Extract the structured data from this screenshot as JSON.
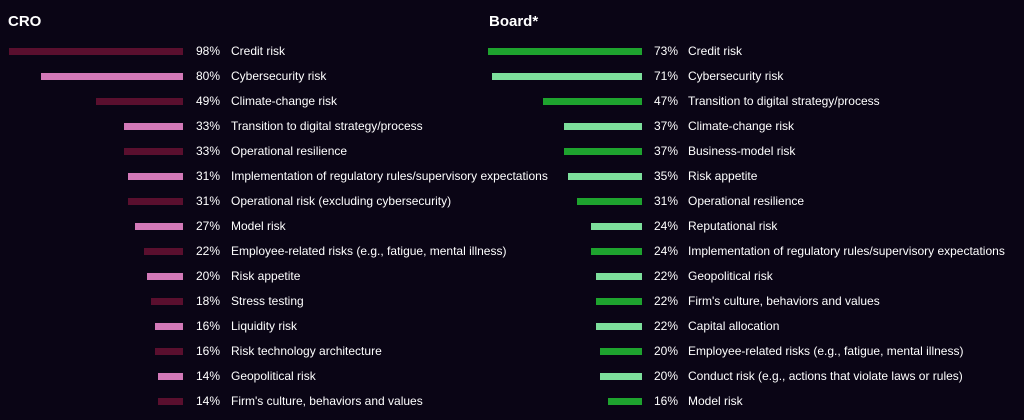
{
  "chart_data": [
    {
      "type": "bar",
      "title": "CRO",
      "orientation": "horizontal",
      "categories": [
        "Credit risk",
        "Cybersecurity risk",
        "Climate-change risk",
        "Transition to digital strategy/process",
        "Operational resilience",
        "Implementation of regulatory rules/supervisory expectations",
        "Operational risk (excluding cybersecurity)",
        "Model risk",
        "Employee-related risks (e.g., fatigue, mental illness)",
        "Risk appetite",
        "Stress testing",
        "Liquidity risk",
        "Risk technology architecture",
        "Geopolitical risk",
        "Firm's culture, behaviors and values"
      ],
      "values": [
        98,
        80,
        49,
        33,
        33,
        31,
        31,
        27,
        22,
        20,
        18,
        16,
        16,
        14,
        14
      ],
      "value_labels": [
        "98%",
        "80%",
        "49%",
        "33%",
        "33%",
        "31%",
        "31%",
        "27%",
        "22%",
        "20%",
        "18%",
        "16%",
        "16%",
        "14%",
        "14%"
      ],
      "colors": [
        "#5a0f2e",
        "#d379b8",
        "#5a0f2e",
        "#d379b8",
        "#5a0f2e",
        "#d379b8",
        "#5a0f2e",
        "#d379b8",
        "#5a0f2e",
        "#d379b8",
        "#5a0f2e",
        "#d379b8",
        "#5a0f2e",
        "#d379b8",
        "#5a0f2e"
      ]
    },
    {
      "type": "bar",
      "title": "Board*",
      "orientation": "horizontal",
      "categories": [
        "Credit risk",
        "Cybersecurity risk",
        "Transition to digital strategy/process",
        "Climate-change risk",
        "Business-model risk",
        "Risk appetite",
        "Operational resilience",
        "Reputational risk",
        "Implementation of regulatory rules/supervisory expectations",
        "Geopolitical risk",
        "Firm's culture, behaviors and values",
        "Capital allocation",
        "Employee-related risks (e.g., fatigue, mental illness)",
        "Conduct risk (e.g., actions that violate laws or rules)",
        "Model risk"
      ],
      "values": [
        73,
        71,
        47,
        37,
        37,
        35,
        31,
        24,
        24,
        22,
        22,
        22,
        20,
        20,
        16
      ],
      "value_labels": [
        "73%",
        "71%",
        "47%",
        "37%",
        "37%",
        "35%",
        "31%",
        "24%",
        "24%",
        "22%",
        "22%",
        "22%",
        "20%",
        "20%",
        "16%"
      ],
      "colors": [
        "#1ea32e",
        "#7ddf9c",
        "#1ea32e",
        "#7ddf9c",
        "#1ea32e",
        "#7ddf9c",
        "#1ea32e",
        "#7ddf9c",
        "#1ea32e",
        "#7ddf9c",
        "#1ea32e",
        "#7ddf9c",
        "#1ea32e",
        "#7ddf9c",
        "#1ea32e"
      ]
    }
  ]
}
